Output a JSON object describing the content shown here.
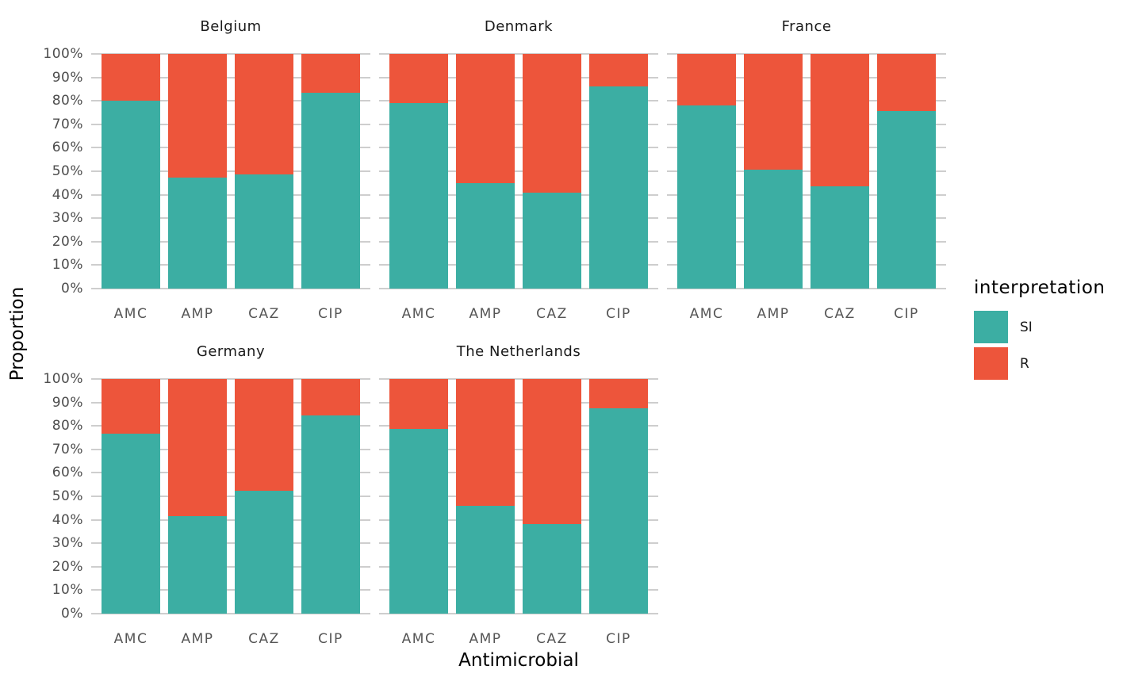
{
  "chart_data": {
    "type": "bar",
    "subtype": "stacked-percent",
    "title": "",
    "xlabel": "Antimicrobial",
    "ylabel": "Proportion",
    "categories": [
      "AMC",
      "AMP",
      "CAZ",
      "CIP"
    ],
    "y_axis": {
      "range": [
        0,
        100
      ],
      "tick_step": 10,
      "tick_labels": [
        "0%",
        "10%",
        "20%",
        "30%",
        "40%",
        "50%",
        "60%",
        "70%",
        "80%",
        "90%",
        "100%"
      ],
      "grid": true
    },
    "legend": {
      "title": "interpretation",
      "position": "right",
      "entries": [
        {
          "label": "SI",
          "color": "#3CAEA3"
        },
        {
          "label": "R",
          "color": "#ED553B"
        }
      ]
    },
    "facets": [
      {
        "title": "Belgium",
        "series": [
          {
            "name": "SI",
            "values": [
              79.9,
              47.3,
              48.5,
              83.4
            ]
          },
          {
            "name": "R",
            "values": [
              20.1,
              52.7,
              51.5,
              16.6
            ]
          }
        ]
      },
      {
        "title": "Denmark",
        "series": [
          {
            "name": "SI",
            "values": [
              79.2,
              44.8,
              40.9,
              86.1
            ]
          },
          {
            "name": "R",
            "values": [
              20.8,
              55.2,
              59.1,
              13.9
            ]
          }
        ]
      },
      {
        "title": "France",
        "series": [
          {
            "name": "SI",
            "values": [
              78.0,
              50.8,
              43.7,
              75.6
            ]
          },
          {
            "name": "R",
            "values": [
              22.0,
              49.2,
              56.3,
              24.4
            ]
          }
        ]
      },
      {
        "title": "Germany",
        "series": [
          {
            "name": "SI",
            "values": [
              76.7,
              41.6,
              52.5,
              84.3
            ]
          },
          {
            "name": "R",
            "values": [
              23.3,
              58.4,
              47.5,
              15.7
            ]
          }
        ]
      },
      {
        "title": "The Netherlands",
        "series": [
          {
            "name": "SI",
            "values": [
              78.6,
              45.8,
              38.2,
              87.5
            ]
          },
          {
            "name": "R",
            "values": [
              21.4,
              54.2,
              61.8,
              12.5
            ]
          }
        ]
      }
    ]
  }
}
